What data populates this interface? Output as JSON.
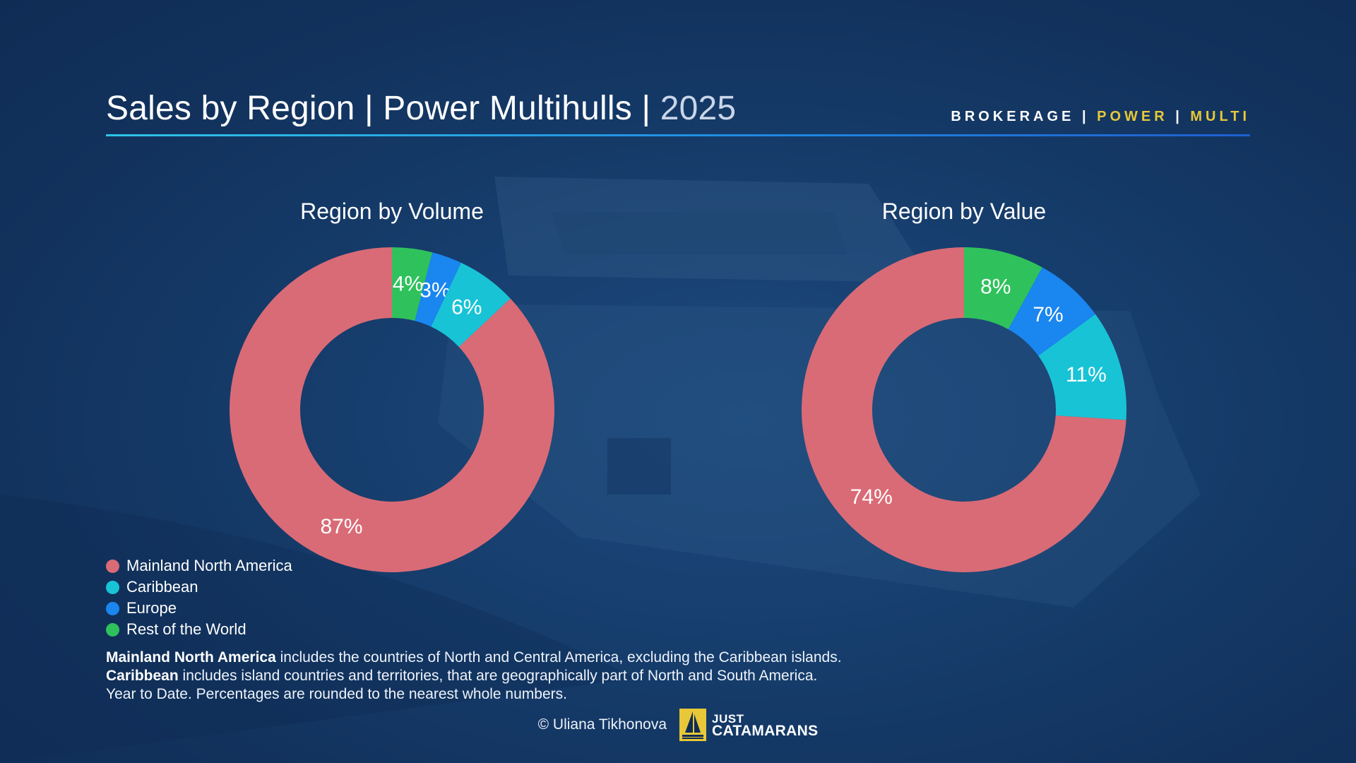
{
  "header": {
    "title": "Sales by Region | Power Multihulls | ",
    "year": "2025",
    "brand_a": "BROKERAGE",
    "brand_sep1": " | ",
    "brand_b": "POWER",
    "brand_sep2": " | ",
    "brand_c": "MULTI"
  },
  "colors": {
    "mainland": "#d96b76",
    "caribbean": "#19c3d6",
    "europe": "#1a86f0",
    "rest": "#2fc25c",
    "accent_yellow": "#e8c838"
  },
  "legend": [
    {
      "label": "Mainland North America",
      "color": "#d96b76"
    },
    {
      "label": "Caribbean",
      "color": "#19c3d6"
    },
    {
      "label": "Europe",
      "color": "#1a86f0"
    },
    {
      "label": "Rest of the World",
      "color": "#2fc25c"
    }
  ],
  "chart_data": [
    {
      "type": "pie",
      "variant": "donut",
      "title": "Region by Volume",
      "slices": [
        {
          "name": "Rest of the World",
          "value": 4,
          "label": "4%",
          "color": "#2fc25c"
        },
        {
          "name": "Europe",
          "value": 3,
          "label": "3%",
          "color": "#1a86f0"
        },
        {
          "name": "Caribbean",
          "value": 6,
          "label": "6%",
          "color": "#19c3d6"
        },
        {
          "name": "Mainland North America",
          "value": 87,
          "label": "87%",
          "color": "#d96b76"
        }
      ]
    },
    {
      "type": "pie",
      "variant": "donut",
      "title": "Region by Value",
      "slices": [
        {
          "name": "Rest of the World",
          "value": 8,
          "label": "8%",
          "color": "#2fc25c"
        },
        {
          "name": "Europe",
          "value": 7,
          "label": "7%",
          "color": "#1a86f0"
        },
        {
          "name": "Caribbean",
          "value": 11,
          "label": "11%",
          "color": "#19c3d6"
        },
        {
          "name": "Mainland North America",
          "value": 74,
          "label": "74%",
          "color": "#d96b76"
        }
      ]
    }
  ],
  "notes": {
    "line1_bold": "Mainland North America",
    "line1_rest": " includes the countries of North and Central America, excluding the Caribbean islands.",
    "line2_bold": "Caribbean",
    "line2_rest": " includes island countries and territories, that are geographically part of North and South America.",
    "line3": "Year to Date. Percentages are rounded to the nearest whole numbers."
  },
  "footer": {
    "copyright": "© Uliana Tikhonova",
    "logo_line1": "JUST",
    "logo_line2": "CATAMARANS"
  }
}
